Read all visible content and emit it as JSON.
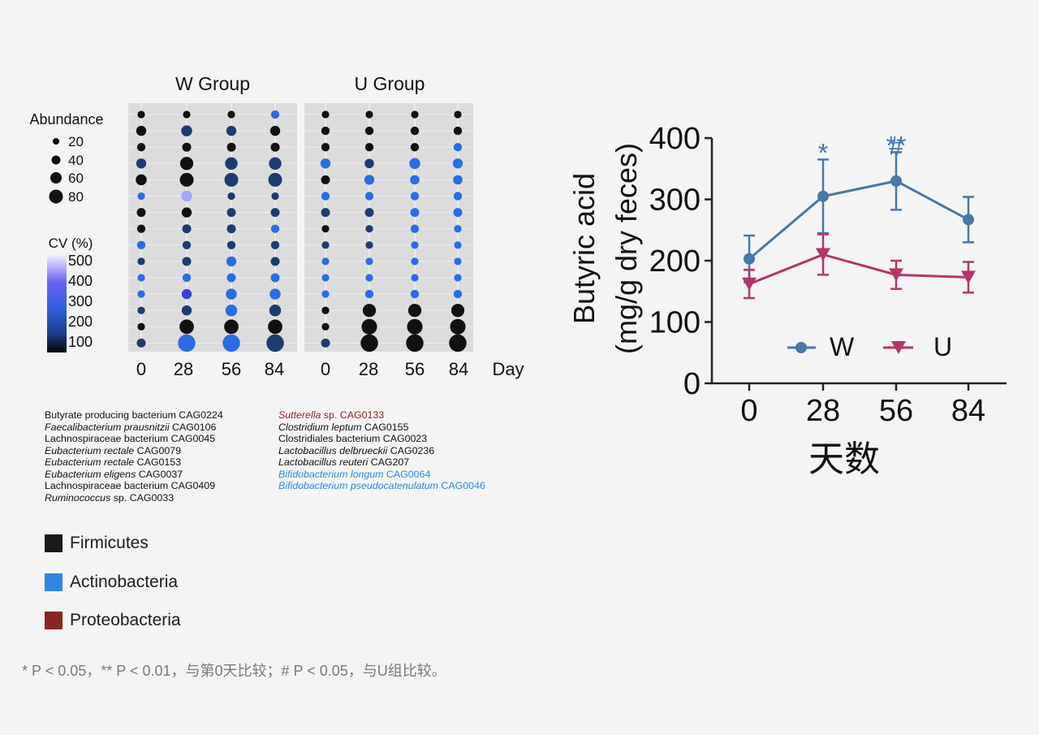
{
  "bubble_chart": {
    "groups": [
      {
        "title": "W Group",
        "days": [
          "0",
          "28",
          "56",
          "84"
        ]
      },
      {
        "title": "U Group",
        "days": [
          "0",
          "28",
          "56",
          "84"
        ]
      }
    ],
    "day_axis_label": "Day",
    "size_legend": {
      "title": "Abundance",
      "values": [
        "20",
        "40",
        "60",
        "80"
      ]
    },
    "color_legend": {
      "title": "CV (%)",
      "ticks": [
        "500",
        "400",
        "300",
        "200",
        "100"
      ]
    }
  },
  "species": {
    "left": [
      {
        "name": "Butyrate producing bacterium",
        "code": "CAG0224",
        "italic": false,
        "phylum": "firmicutes"
      },
      {
        "name": "Faecalibacterium prausnitzii",
        "code": "CAG0106",
        "italic": true,
        "phylum": "firmicutes"
      },
      {
        "name": "Lachnospiraceae bacterium",
        "code": "CAG0045",
        "italic": false,
        "phylum": "firmicutes"
      },
      {
        "name": "Eubacterium rectale",
        "code": "CAG0079",
        "italic": true,
        "phylum": "firmicutes"
      },
      {
        "name": "Eubacterium rectale",
        "code": "CAG0153",
        "italic": true,
        "phylum": "firmicutes"
      },
      {
        "name": "Eubacterium eligens",
        "code": "CAG0037",
        "italic": true,
        "phylum": "firmicutes"
      },
      {
        "name": "Lachnospiraceae bacterium",
        "code": "CAG0409",
        "italic": false,
        "phylum": "firmicutes"
      },
      {
        "name": "Ruminococcus",
        "code": "sp. CAG0033",
        "italic": true,
        "phylum": "firmicutes"
      }
    ],
    "right": [
      {
        "name": "Sutterella",
        "code": "sp. CAG0133",
        "italic": true,
        "phylum": "proteobacteria"
      },
      {
        "name": "Clostridium leptum",
        "code": "CAG0155",
        "italic": true,
        "phylum": "firmicutes"
      },
      {
        "name": "Clostridiales bacterium",
        "code": "CAG0023",
        "italic": false,
        "phylum": "firmicutes"
      },
      {
        "name": "Lactobacillus delbrueckii",
        "code": "CAG0236",
        "italic": true,
        "phylum": "firmicutes"
      },
      {
        "name": "Lactobacillus reuteri",
        "code": "CAG207",
        "italic": true,
        "phylum": "firmicutes"
      },
      {
        "name": "Bifidobacterium longum",
        "code": "CAG0064",
        "italic": true,
        "phylum": "actinobacteria"
      },
      {
        "name": "Bifidobacterium pseudocatenulatum",
        "code": "CAG0046",
        "italic": true,
        "phylum": "actinobacteria"
      }
    ]
  },
  "phylum_legend": [
    {
      "key": "firmicutes",
      "label": "Firmicutes",
      "color": "#1a1a1a"
    },
    {
      "key": "actinobacteria",
      "label": "Actinobacteria",
      "color": "#2f86e0"
    },
    {
      "key": "proteobacteria",
      "label": "Proteobacteria",
      "color": "#8b2525"
    }
  ],
  "footnote": "* P < 0.05，** P < 0.01，与第0天比较；# P < 0.05，与U组比较。",
  "chart_data": [
    {
      "type": "heatmap",
      "subtype": "bubble",
      "groups": [
        "W Group",
        "U Group"
      ],
      "x": [
        "0",
        "28",
        "56",
        "84"
      ],
      "rows": 15,
      "cells": {
        "W Group": [
          {
            "abundance": [
              5,
              5,
              5,
              8
            ],
            "cv": [
              100,
              100,
              100,
              300
            ]
          },
          {
            "abundance": [
              15,
              20,
              15,
              15
            ],
            "cv": [
              100,
              200,
              200,
              100
            ]
          },
          {
            "abundance": [
              8,
              10,
              10,
              10
            ],
            "cv": [
              100,
              100,
              100,
              100
            ]
          },
          {
            "abundance": [
              15,
              35,
              30,
              30
            ],
            "cv": [
              200,
              100,
              200,
              200
            ]
          },
          {
            "abundance": [
              20,
              40,
              40,
              40
            ],
            "cv": [
              100,
              100,
              200,
              200
            ]
          },
          {
            "abundance": [
              5,
              20,
              5,
              5
            ],
            "cv": [
              300,
              500,
              200,
              200
            ]
          },
          {
            "abundance": [
              10,
              15,
              10,
              10
            ],
            "cv": [
              100,
              100,
              200,
              200
            ]
          },
          {
            "abundance": [
              8,
              10,
              10,
              8
            ],
            "cv": [
              100,
              200,
              200,
              300
            ]
          },
          {
            "abundance": [
              8,
              8,
              8,
              8
            ],
            "cv": [
              300,
              200,
              200,
              200
            ]
          },
          {
            "abundance": [
              5,
              10,
              15,
              10
            ],
            "cv": [
              200,
              200,
              300,
              200
            ]
          },
          {
            "abundance": [
              5,
              8,
              10,
              10
            ],
            "cv": [
              300,
              300,
              300,
              300
            ]
          },
          {
            "abundance": [
              5,
              15,
              20,
              20
            ],
            "cv": [
              300,
              400,
              300,
              300
            ]
          },
          {
            "abundance": [
              5,
              15,
              25,
              25
            ],
            "cv": [
              200,
              200,
              300,
              200
            ]
          },
          {
            "abundance": [
              5,
              45,
              45,
              45
            ],
            "cv": [
              100,
              100,
              100,
              100
            ]
          },
          {
            "abundance": [
              10,
              75,
              75,
              75
            ],
            "cv": [
              200,
              300,
              300,
              200
            ]
          }
        ],
        "U Group": [
          {
            "abundance": [
              5,
              5,
              5,
              5
            ],
            "cv": [
              100,
              100,
              100,
              100
            ]
          },
          {
            "abundance": [
              8,
              8,
              8,
              8
            ],
            "cv": [
              100,
              100,
              100,
              100
            ]
          },
          {
            "abundance": [
              8,
              8,
              8,
              8
            ],
            "cv": [
              100,
              100,
              100,
              300
            ]
          },
          {
            "abundance": [
              15,
              12,
              20,
              15
            ],
            "cv": [
              300,
              200,
              300,
              300
            ]
          },
          {
            "abundance": [
              10,
              15,
              12,
              12
            ],
            "cv": [
              100,
              300,
              300,
              300
            ]
          },
          {
            "abundance": [
              8,
              8,
              8,
              8
            ],
            "cv": [
              300,
              300,
              300,
              300
            ]
          },
          {
            "abundance": [
              10,
              10,
              10,
              10
            ],
            "cv": [
              200,
              200,
              300,
              300
            ]
          },
          {
            "abundance": [
              5,
              5,
              8,
              5
            ],
            "cv": [
              100,
              200,
              300,
              300
            ]
          },
          {
            "abundance": [
              5,
              5,
              5,
              5
            ],
            "cv": [
              200,
              200,
              300,
              300
            ]
          },
          {
            "abundance": [
              5,
              5,
              5,
              5
            ],
            "cv": [
              300,
              300,
              300,
              300
            ]
          },
          {
            "abundance": [
              5,
              5,
              5,
              5
            ],
            "cv": [
              300,
              300,
              300,
              300
            ]
          },
          {
            "abundance": [
              5,
              8,
              8,
              8
            ],
            "cv": [
              300,
              300,
              300,
              300
            ]
          },
          {
            "abundance": [
              5,
              35,
              35,
              35
            ],
            "cv": [
              100,
              100,
              100,
              100
            ]
          },
          {
            "abundance": [
              5,
              55,
              55,
              55
            ],
            "cv": [
              100,
              100,
              100,
              100
            ]
          },
          {
            "abundance": [
              10,
              75,
              75,
              75
            ],
            "cv": [
              200,
              100,
              100,
              100
            ]
          }
        ]
      }
    },
    {
      "type": "line",
      "x": [
        "0",
        "28",
        "56",
        "84"
      ],
      "xlabel": "天数",
      "ylabel": "Butyric acid (mg/g dry feces)",
      "ylim": [
        0,
        400
      ],
      "yticks": [
        "0",
        "100",
        "200",
        "300",
        "400"
      ],
      "legend": "bottom-right",
      "series": [
        {
          "name": "W",
          "color": "#4a77a8",
          "marker": "circle",
          "values": [
            203,
            305,
            330,
            267
          ],
          "err": [
            38,
            60,
            47,
            37
          ],
          "annotations": [
            "",
            "*",
            "**\n#",
            ""
          ]
        },
        {
          "name": "U",
          "color": "#b3366a",
          "marker": "triangle-down",
          "values": [
            162,
            210,
            177,
            173
          ],
          "err": [
            23,
            33,
            23,
            25
          ],
          "annotations": [
            "",
            "",
            "",
            ""
          ]
        }
      ]
    }
  ]
}
